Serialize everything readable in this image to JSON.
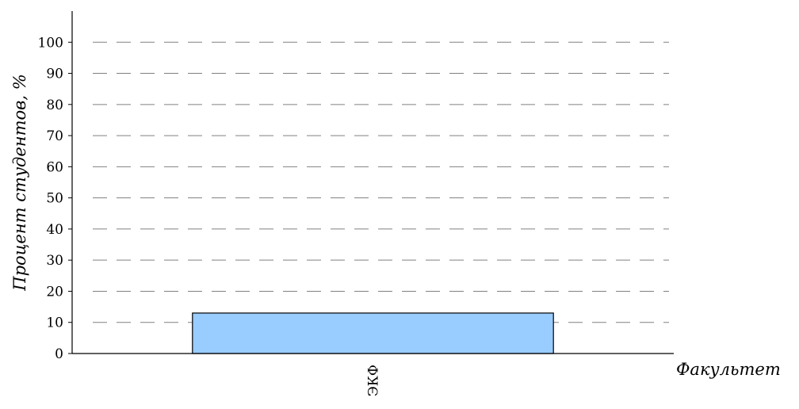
{
  "chart_data": {
    "type": "bar",
    "title": "",
    "xlabel": "Факультет",
    "ylabel": "Процент студентов, %",
    "categories": [
      "ЭКФ"
    ],
    "values": [
      13
    ],
    "ylim": [
      0,
      110
    ],
    "yticks": [
      0,
      10,
      20,
      30,
      40,
      50,
      60,
      70,
      80,
      90,
      100
    ],
    "grid": true,
    "bar_color": "#99ccff",
    "bar_edge_color": "#000000",
    "grid_color": "#808080"
  }
}
